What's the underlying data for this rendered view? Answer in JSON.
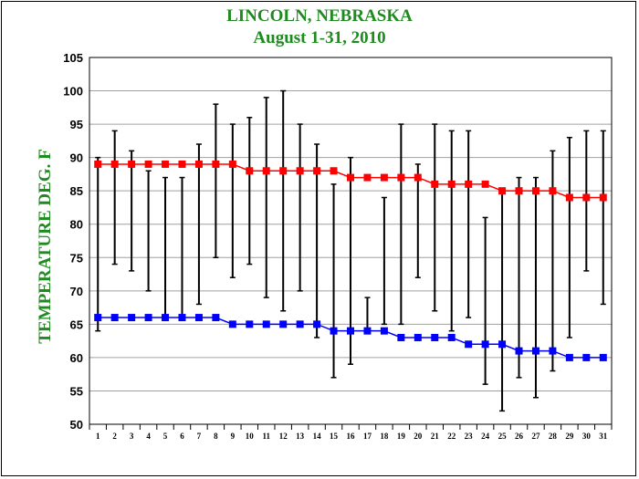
{
  "chart_data": {
    "type": "line",
    "title": "LINCOLN, NEBRASKA",
    "subtitle": "August 1-31, 2010",
    "ylabel": "TEMPERATURE DEG. F",
    "xlabel": "",
    "ylim": [
      50,
      105
    ],
    "yticks": [
      50,
      55,
      60,
      65,
      70,
      75,
      80,
      85,
      90,
      95,
      100,
      105
    ],
    "x": [
      1,
      2,
      3,
      4,
      5,
      6,
      7,
      8,
      9,
      10,
      11,
      12,
      13,
      14,
      15,
      16,
      17,
      18,
      19,
      20,
      21,
      22,
      23,
      24,
      25,
      26,
      27,
      28,
      29,
      30,
      31
    ],
    "grid": true,
    "series": [
      {
        "values": [
          89,
          89,
          89,
          89,
          89,
          89,
          89,
          89,
          89,
          88,
          88,
          88,
          88,
          88,
          88,
          87,
          87,
          87,
          87,
          87,
          86,
          86,
          86,
          86,
          85,
          85,
          85,
          85,
          84,
          84,
          84
        ],
        "color": "#ff0000"
      },
      {
        "values": [
          66,
          66,
          66,
          66,
          66,
          66,
          66,
          66,
          65,
          65,
          65,
          65,
          65,
          65,
          64,
          64,
          64,
          64,
          63,
          63,
          63,
          63,
          62,
          62,
          62,
          61,
          61,
          61,
          60,
          60,
          60
        ],
        "color": "#0000ff"
      }
    ],
    "ranges": {
      "high": [
        90,
        94,
        91,
        88,
        87,
        87,
        92,
        98,
        95,
        96,
        99,
        100,
        95,
        92,
        86,
        90,
        69,
        84,
        95,
        89,
        95,
        94,
        94,
        81,
        85,
        87,
        87,
        91,
        93,
        94,
        94
      ],
      "low": [
        64,
        74,
        73,
        70,
        66,
        66,
        68,
        75,
        72,
        74,
        69,
        67,
        70,
        63,
        57,
        59,
        64,
        65,
        65,
        72,
        67,
        64,
        66,
        56,
        52,
        57,
        54,
        58,
        63,
        73,
        68
      ],
      "color": "#000000"
    }
  }
}
